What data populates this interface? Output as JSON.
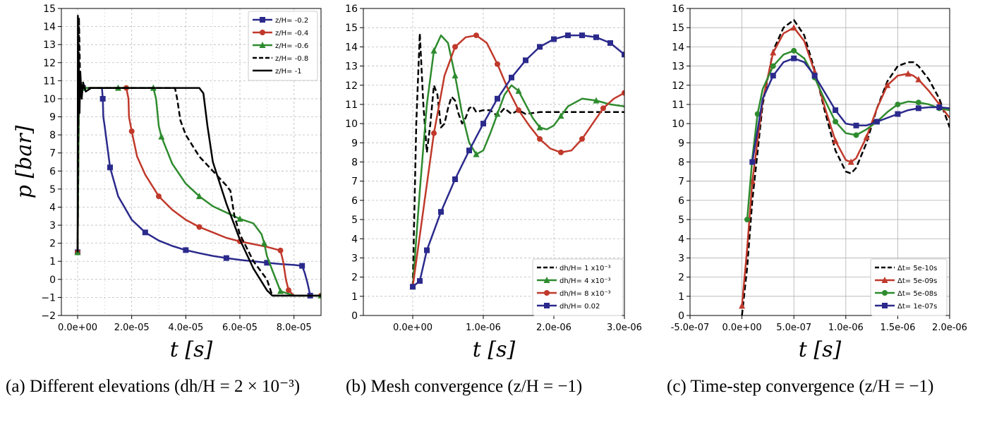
{
  "panels": [
    {
      "id": "a",
      "caption": "(a) Different elevations (dh/H = 2 × 10⁻³)",
      "xlabel": "t [s]",
      "ylabel": "p [bar]",
      "x_ticks": [
        "0.0e+00",
        "2.0e-05",
        "4.0e-05",
        "6.0e-05",
        "8.0e-05"
      ],
      "y_ticks": [
        "−2",
        "−1",
        "0",
        "1",
        "2",
        "3",
        "4",
        "5",
        "6",
        "7",
        "8",
        "9",
        "10",
        "11",
        "12",
        "13",
        "14",
        "15"
      ]
    },
    {
      "id": "b",
      "caption": "(b) Mesh convergence (z/H = −1)",
      "xlabel": "t [s]",
      "ylabel": "",
      "x_ticks": [
        "0.0e+00",
        "1.0e-06",
        "2.0e-06",
        "3.0e-06"
      ],
      "y_ticks": [
        "0",
        "1",
        "2",
        "3",
        "4",
        "5",
        "6",
        "7",
        "8",
        "9",
        "10",
        "11",
        "12",
        "13",
        "14",
        "15",
        "16"
      ]
    },
    {
      "id": "c",
      "caption": "(c) Time-step convergence (z/H = −1)",
      "xlabel": "t [s]",
      "ylabel": "",
      "x_ticks": [
        "-5.0e-07",
        "0.0e+00",
        "5.0e-07",
        "1.0e-06",
        "1.5e-06",
        "2.0e-06"
      ],
      "y_ticks": [
        "0",
        "1",
        "2",
        "3",
        "4",
        "5",
        "6",
        "7",
        "8",
        "9",
        "10",
        "11",
        "12",
        "13",
        "14",
        "15",
        "16"
      ]
    }
  ],
  "chart_data": [
    {
      "type": "line",
      "panel": "a",
      "xlabel": "t [s]",
      "ylabel": "p [bar]",
      "xlim": [
        -6e-06,
        9e-05
      ],
      "ylim": [
        -2,
        15
      ],
      "grid": true,
      "legend_position": "top-right",
      "series": [
        {
          "name": "z/H= -0.2",
          "color": "#2b2a8c",
          "dash": "solid",
          "marker": "square",
          "x": [
            0,
            5e-07,
            1.5e-06,
            2e-06,
            5e-06,
            9e-06,
            9.3e-06,
            9.5e-06,
            1e-05,
            1.2e-05,
            1.5e-05,
            2e-05,
            2.5e-05,
            3e-05,
            3.5e-05,
            4e-05,
            4.5e-05,
            5e-05,
            5.5e-05,
            6e-05,
            6.5e-05,
            7e-05,
            7.5e-05,
            8e-05,
            8.3e-05,
            8.4e-05,
            8.5e-05,
            8.6e-05,
            8.8e-05,
            9e-05
          ],
          "y": [
            1.5,
            10.5,
            10.6,
            10.6,
            10.6,
            10.6,
            10,
            9,
            8.5,
            6.2,
            4.6,
            3.3,
            2.6,
            2.15,
            1.85,
            1.62,
            1.45,
            1.3,
            1.18,
            1.08,
            1,
            0.92,
            0.85,
            0.8,
            0.75,
            0.35,
            -0.2,
            -0.9,
            -0.9,
            -0.9
          ]
        },
        {
          "name": "z/H= -0.4",
          "color": "#c0392b",
          "dash": "solid",
          "marker": "circle",
          "x": [
            0,
            5e-07,
            1.5e-06,
            2e-06,
            5e-06,
            1e-05,
            1.8e-05,
            1.88e-05,
            1.9e-05,
            2e-05,
            2.2e-05,
            2.5e-05,
            3e-05,
            3.5e-05,
            4e-05,
            4.5e-05,
            5e-05,
            5.5e-05,
            6e-05,
            6.5e-05,
            7e-05,
            7.5e-05,
            7.6e-05,
            7.7e-05,
            7.8e-05,
            8e-05,
            8.5e-05,
            9e-05
          ],
          "y": [
            1.5,
            10.5,
            10.6,
            10.6,
            10.6,
            10.6,
            10.6,
            10,
            9,
            8.2,
            6.8,
            5.8,
            4.6,
            3.85,
            3.3,
            2.9,
            2.6,
            2.3,
            2.1,
            1.95,
            1.8,
            1.6,
            1,
            0,
            -0.6,
            -0.9,
            -0.9,
            -0.9
          ]
        },
        {
          "name": "z/H= -0.6",
          "color": "#2e8b2e",
          "dash": "solid",
          "marker": "triangle",
          "x": [
            0,
            5e-07,
            1.5e-06,
            2e-06,
            5e-06,
            1e-05,
            1.5e-05,
            2e-05,
            2.5e-05,
            2.8e-05,
            2.9e-05,
            3e-05,
            3.1e-05,
            3.5e-05,
            4e-05,
            4.5e-05,
            5e-05,
            5.5e-05,
            6e-05,
            6.5e-05,
            6.8e-05,
            6.9e-05,
            7e-05,
            7.2e-05,
            7.5e-05,
            8e-05,
            8.5e-05,
            9e-05
          ],
          "y": [
            1.5,
            10.5,
            10.6,
            10.6,
            10.6,
            10.6,
            10.6,
            10.6,
            10.6,
            10.6,
            10,
            8.5,
            7.9,
            6.4,
            5.3,
            4.6,
            4.05,
            3.7,
            3.35,
            3.1,
            2.5,
            2,
            1.3,
            0.5,
            -0.65,
            -0.9,
            -0.9,
            -0.9
          ]
        },
        {
          "name": "z/H= -0.8",
          "color": "#000000",
          "dash": "dashed",
          "marker": "none",
          "x": [
            0,
            5e-07,
            1e-06,
            2e-06,
            1e-05,
            2e-05,
            3e-05,
            3.6e-05,
            3.68e-05,
            3.75e-05,
            3.8e-05,
            4e-05,
            4.5e-05,
            5e-05,
            5.5e-05,
            5.65e-05,
            5.8e-05,
            6e-05,
            6.5e-05,
            7e-05,
            7.2e-05,
            8e-05,
            9e-05
          ],
          "y": [
            1.5,
            14.5,
            10.6,
            10.6,
            10.6,
            10.6,
            10.6,
            10.6,
            10,
            9.3,
            8.8,
            8,
            6.8,
            6,
            5.2,
            4.9,
            3.5,
            2.5,
            1,
            0,
            -0.9,
            -0.9,
            -0.9
          ]
        },
        {
          "name": "z/H= -1",
          "color": "#000000",
          "dash": "solid",
          "marker": "none",
          "x": [
            0,
            1e-07,
            2e-07,
            4e-07,
            7e-07,
            1e-06,
            1.5e-06,
            2e-06,
            3e-06,
            5e-06,
            1e-05,
            2e-05,
            3e-05,
            4e-05,
            4.5e-05,
            4.65e-05,
            4.8e-05,
            5e-05,
            5.5e-05,
            6e-05,
            6.5e-05,
            7e-05,
            7.2e-05,
            8e-05,
            9e-05
          ],
          "y": [
            1.5,
            14.6,
            8.5,
            12.5,
            9.2,
            11.5,
            10,
            10.9,
            10.4,
            10.6,
            10.6,
            10.6,
            10.6,
            10.6,
            10.6,
            10.3,
            8.5,
            6.5,
            4.2,
            2.2,
            0.6,
            -0.6,
            -0.9,
            -0.9,
            -0.9
          ]
        }
      ]
    },
    {
      "type": "line",
      "panel": "b",
      "xlabel": "t [s]",
      "ylabel": "",
      "xlim": [
        -7e-07,
        3e-06
      ],
      "ylim": [
        0,
        16
      ],
      "grid": true,
      "legend_position": "bottom-right",
      "series": [
        {
          "name": "dh/H= 1 x10⁻³",
          "color": "#000000",
          "dash": "dashed",
          "marker": "none",
          "x": [
            0,
            5e-08,
            1e-07,
            1.5e-07,
            2e-07,
            2.5e-07,
            3e-07,
            3.5e-07,
            4e-07,
            4.5e-07,
            5e-07,
            5.5e-07,
            6e-07,
            6.5e-07,
            7e-07,
            7.5e-07,
            8e-07,
            8.5e-07,
            9e-07,
            1e-06,
            1.1e-06,
            1.2e-06,
            1.3e-06,
            1.4e-06,
            1.5e-06,
            1.6e-06,
            1.8e-06,
            2e-06,
            2.2e-06,
            2.5e-06,
            3e-06
          ],
          "y": [
            1.5,
            10,
            14.7,
            11,
            8.5,
            10,
            12,
            11.5,
            9.8,
            10,
            10.8,
            11.4,
            11.2,
            10.5,
            10,
            10.3,
            10.8,
            10.9,
            10.6,
            10.7,
            10.7,
            10.4,
            10.8,
            10.5,
            10.7,
            10.5,
            10.6,
            10.6,
            10.6,
            10.6,
            10.6
          ]
        },
        {
          "name": "dh/H= 4 x10⁻³",
          "color": "#2e8b2e",
          "dash": "solid",
          "marker": "triangle",
          "x": [
            0,
            1e-07,
            2e-07,
            3e-07,
            4e-07,
            5e-07,
            6e-07,
            7e-07,
            8e-07,
            9e-07,
            1e-06,
            1.1e-06,
            1.2e-06,
            1.3e-06,
            1.4e-06,
            1.5e-06,
            1.6e-06,
            1.7e-06,
            1.8e-06,
            1.9e-06,
            2e-06,
            2.1e-06,
            2.2e-06,
            2.4e-06,
            2.6e-06,
            2.8e-06,
            3e-06
          ],
          "y": [
            1.5,
            6.5,
            11,
            13.8,
            14.6,
            14.2,
            12.5,
            10.5,
            9,
            8.4,
            8.6,
            9.5,
            10.5,
            11.5,
            12,
            11.7,
            11,
            10.3,
            9.8,
            9.7,
            9.9,
            10.4,
            10.9,
            11.3,
            11.2,
            11,
            10.9
          ]
        },
        {
          "name": "dh/H= 8 x10⁻³",
          "color": "#c0392b",
          "dash": "solid",
          "marker": "circle",
          "x": [
            0,
            1.5e-07,
            3e-07,
            4.5e-07,
            6e-07,
            7.5e-07,
            9e-07,
            1.05e-06,
            1.2e-06,
            1.35e-06,
            1.5e-06,
            1.65e-06,
            1.8e-06,
            1.95e-06,
            2.1e-06,
            2.25e-06,
            2.4e-06,
            2.55e-06,
            2.7e-06,
            2.85e-06,
            3e-06
          ],
          "y": [
            1.5,
            5.5,
            9.5,
            12.5,
            14,
            14.5,
            14.6,
            14.2,
            13.1,
            11.8,
            10.7,
            9.9,
            9.2,
            8.7,
            8.5,
            8.6,
            9.2,
            10,
            10.8,
            11.3,
            11.6
          ]
        },
        {
          "name": "dh/H= 0.02",
          "color": "#2b2a8c",
          "dash": "solid",
          "marker": "square",
          "x": [
            0,
            1e-07,
            2e-07,
            4e-07,
            6e-07,
            8e-07,
            1e-06,
            1.2e-06,
            1.4e-06,
            1.6e-06,
            1.8e-06,
            2e-06,
            2.2e-06,
            2.4e-06,
            2.6e-06,
            2.8e-06,
            3e-06
          ],
          "y": [
            1.5,
            1.8,
            3.4,
            5.4,
            7.1,
            8.6,
            10,
            11.3,
            12.4,
            13.3,
            14,
            14.4,
            14.6,
            14.6,
            14.5,
            14.2,
            13.6
          ]
        }
      ]
    },
    {
      "type": "line",
      "panel": "c",
      "xlabel": "t [s]",
      "ylabel": "",
      "xlim": [
        -5e-07,
        2e-06
      ],
      "ylim": [
        0,
        16
      ],
      "grid": true,
      "legend_position": "bottom-right",
      "series": [
        {
          "name": "Δt= 5e-10s",
          "color": "#000000",
          "dash": "dashed",
          "marker": "none",
          "x": [
            0,
            5e-08,
            1e-07,
            2e-07,
            3e-07,
            4e-07,
            5e-07,
            6e-07,
            7e-07,
            8e-07,
            9e-07,
            1e-06,
            1.05e-06,
            1.1e-06,
            1.2e-06,
            1.3e-06,
            1.4e-06,
            1.5e-06,
            1.6e-06,
            1.65e-06,
            1.7e-06,
            1.8e-06,
            1.9e-06,
            2e-06
          ],
          "y": [
            0,
            2.5,
            6,
            11,
            13.8,
            15,
            15.4,
            14.6,
            12.8,
            10.6,
            8.6,
            7.5,
            7.4,
            7.7,
            9,
            10.8,
            12.2,
            13,
            13.2,
            13.2,
            13,
            12.3,
            11.3,
            9.8
          ]
        },
        {
          "name": "Δt= 5e-09s",
          "color": "#c0392b",
          "dash": "solid",
          "marker": "triangle",
          "x": [
            0,
            5e-08,
            1e-07,
            2e-07,
            3e-07,
            4e-07,
            5e-07,
            6e-07,
            7e-07,
            8e-07,
            9e-07,
            1e-06,
            1.05e-06,
            1.1e-06,
            1.2e-06,
            1.3e-06,
            1.4e-06,
            1.5e-06,
            1.6e-06,
            1.65e-06,
            1.7e-06,
            1.8e-06,
            1.9e-06,
            2e-06
          ],
          "y": [
            0.5,
            3.5,
            7,
            11.2,
            13.7,
            14.7,
            15,
            14.3,
            12.7,
            10.8,
            9.1,
            8.1,
            8,
            8.2,
            9.3,
            10.8,
            12,
            12.5,
            12.6,
            12.5,
            12.3,
            11.7,
            11,
            10.3
          ]
        },
        {
          "name": "Δt= 5e-08s",
          "color": "#2e8b2e",
          "dash": "solid",
          "marker": "circle",
          "x": [
            5e-08,
            1e-07,
            1.5e-07,
            2e-07,
            3e-07,
            4e-07,
            5e-07,
            6e-07,
            7e-07,
            8e-07,
            9e-07,
            1e-06,
            1.1e-06,
            1.2e-06,
            1.3e-06,
            1.4e-06,
            1.5e-06,
            1.6e-06,
            1.7e-06,
            1.8e-06,
            1.9e-06,
            2e-06
          ],
          "y": [
            5,
            8.2,
            10.5,
            11.8,
            13,
            13.6,
            13.8,
            13.4,
            12.4,
            11.2,
            10.1,
            9.5,
            9.4,
            9.7,
            10.1,
            10.6,
            11,
            11.15,
            11.1,
            11,
            10.8,
            10.7
          ]
        },
        {
          "name": "Δt= 1e-07s",
          "color": "#2b2a8c",
          "dash": "solid",
          "marker": "square",
          "x": [
            1e-07,
            2e-07,
            3e-07,
            4e-07,
            5e-07,
            6e-07,
            7e-07,
            8e-07,
            9e-07,
            1e-06,
            1.1e-06,
            1.2e-06,
            1.3e-06,
            1.4e-06,
            1.5e-06,
            1.6e-06,
            1.7e-06,
            1.8e-06,
            1.9e-06,
            2e-06
          ],
          "y": [
            8,
            11.3,
            12.5,
            13.2,
            13.4,
            13.2,
            12.5,
            11.6,
            10.7,
            10,
            9.9,
            9.9,
            10.1,
            10.3,
            10.5,
            10.7,
            10.8,
            10.85,
            10.85,
            10.8
          ]
        }
      ]
    }
  ]
}
